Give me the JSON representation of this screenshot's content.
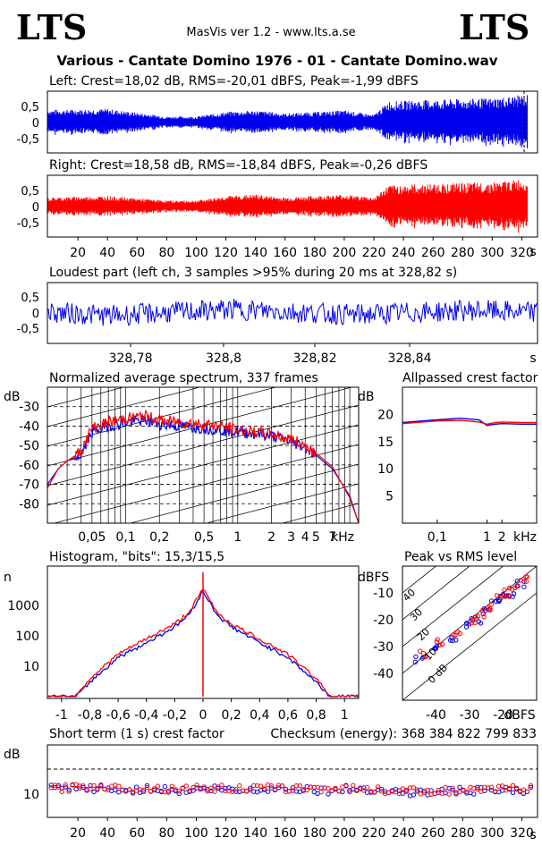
{
  "header": {
    "logo_left": "LTS",
    "logo_right": "LTS",
    "app_title": "MasVis ver 1.2 - www.lts.a.se",
    "file_title": "Various - Cantate Domino 1976 - 01 - Cantate Domino.wav"
  },
  "colors": {
    "left": "#0000ee",
    "right": "#ff0000",
    "grid": "#000000"
  },
  "panels": {
    "left": {
      "label": "Left: Crest=18,02 dB, RMS=-20,01 dBFS, Peak=-1,99 dBFS",
      "ytick_labels": [
        "0,5",
        "0",
        "-0,5"
      ]
    },
    "right": {
      "label": "Right: Crest=18,58 dB, RMS=-18,84 dBFS, Peak=-0,26 dBFS",
      "ytick_labels": [
        "0,5",
        "0",
        "-0,5"
      ]
    },
    "time_axis": {
      "tick_labels": [
        "20",
        "40",
        "60",
        "80",
        "100",
        "120",
        "140",
        "160",
        "180",
        "200",
        "220",
        "240",
        "260",
        "280",
        "300",
        "320"
      ],
      "unit": "s"
    },
    "loudest": {
      "label": "Loudest part (left  ch, 3 samples >95% during 20 ms at 328,82 s)",
      "ytick_labels": [
        "0,5",
        "0",
        "-0,5"
      ],
      "xtick_labels": [
        "328,78",
        "328,8",
        "328,82",
        "328,84"
      ],
      "unit": "s"
    },
    "spectrum": {
      "label": "Normalized average spectrum, 337 frames",
      "ylabel": "dB",
      "ytick_labels": [
        "-30",
        "-40",
        "-50",
        "-60",
        "-70",
        "-80"
      ],
      "xtick_labels": [
        "0,05",
        "0,1",
        "0,2",
        "0,5",
        "1",
        "2",
        "3",
        "4",
        "5",
        "7"
      ],
      "xunit": "kHz"
    },
    "allpass": {
      "label": "Allpassed crest factor",
      "ylabel": "dB",
      "ytick_labels": [
        "20",
        "15",
        "10",
        "5"
      ],
      "xtick_labels": [
        "0,1",
        "1",
        "2"
      ],
      "xunit": "kHz"
    },
    "histogram": {
      "label": "Histogram, \"bits\": 15,3/15,5",
      "ylabel": "n",
      "ytick_labels": [
        "1000",
        "100",
        "10"
      ],
      "xtick_labels": [
        "-1",
        "-0,8",
        "-0,6",
        "-0,4",
        "-0,2",
        "0",
        "0,2",
        "0,4",
        "0,6",
        "0,8",
        "1"
      ]
    },
    "peak_rms": {
      "label": "Peak vs RMS level",
      "ylabel": "dBFS",
      "ytick_labels": [
        "-10",
        "-20",
        "-30",
        "-40"
      ],
      "xtick_labels": [
        "-40",
        "-30",
        "-20"
      ],
      "xunit": "dBFS",
      "diag_labels": [
        "40",
        "30",
        "20",
        "10",
        "0 dB"
      ]
    },
    "crest": {
      "label": "Short term (1 s) crest factor",
      "checksum": "Checksum (energy):  368 384 822 799 833",
      "ylabel": "dB",
      "ytick_labels": [
        "10"
      ],
      "xtick_labels": [
        "20",
        "40",
        "60",
        "80",
        "100",
        "120",
        "140",
        "160",
        "180",
        "200",
        "220",
        "240",
        "260",
        "280",
        "300",
        "320"
      ],
      "unit": "s"
    }
  },
  "chart_data": [
    {
      "type": "area",
      "title": "Left: Crest=18,02 dB, RMS=-20,01 dBFS, Peak=-1,99 dBFS",
      "xlabel": "s",
      "ylim": [
        -1,
        1
      ],
      "xlim": [
        0,
        330
      ],
      "series": [
        {
          "name": "Left",
          "x": [
            0,
            40,
            80,
            100,
            120,
            140,
            160,
            180,
            200,
            220,
            230,
            260,
            300,
            328
          ],
          "values": [
            0.42,
            0.45,
            0.2,
            0.2,
            0.35,
            0.4,
            0.3,
            0.35,
            0.4,
            0.25,
            0.7,
            0.75,
            0.8,
            0.95
          ]
        }
      ]
    },
    {
      "type": "area",
      "title": "Right: Crest=18,58 dB, RMS=-18,84 dBFS, Peak=-0,26 dBFS",
      "xlabel": "s",
      "ylim": [
        -1,
        1
      ],
      "xlim": [
        0,
        330
      ],
      "series": [
        {
          "name": "Right",
          "x": [
            0,
            40,
            80,
            100,
            120,
            140,
            160,
            180,
            200,
            220,
            230,
            260,
            300,
            328
          ],
          "values": [
            0.3,
            0.35,
            0.2,
            0.2,
            0.35,
            0.4,
            0.3,
            0.35,
            0.4,
            0.3,
            0.7,
            0.75,
            0.8,
            0.95
          ]
        }
      ]
    },
    {
      "type": "line",
      "title": "Loudest part (left  ch, 3 samples >95% during 20 ms at 328,82 s)",
      "xlabel": "s",
      "xlim": [
        328.77,
        328.85
      ],
      "ylim": [
        -1,
        1
      ],
      "series": [
        {
          "name": "Left",
          "x": [
            328.77,
            328.78,
            328.8,
            328.82,
            328.84,
            328.85
          ],
          "values": [
            0.1,
            -0.3,
            0.4,
            -0.2,
            0.3,
            0.05
          ]
        }
      ]
    },
    {
      "type": "line",
      "title": "Normalized average spectrum, 337 frames",
      "xlabel": "kHz",
      "ylabel": "dB",
      "xlim": [
        0.02,
        12
      ],
      "ylim": [
        -90,
        -20
      ],
      "x": [
        0.02,
        0.025,
        0.03,
        0.04,
        0.05,
        0.07,
        0.1,
        0.15,
        0.2,
        0.3,
        0.5,
        0.7,
        1,
        2,
        3,
        4,
        5,
        7,
        10,
        12
      ],
      "series": [
        {
          "name": "Left",
          "values": [
            -70,
            -62,
            -58,
            -55,
            -43,
            -40,
            -38,
            -37,
            -39,
            -40,
            -41,
            -42,
            -43,
            -45,
            -48,
            -51,
            -55,
            -62,
            -76,
            -90
          ]
        },
        {
          "name": "Right",
          "values": [
            -72,
            -62,
            -58,
            -53,
            -41,
            -38,
            -36,
            -35,
            -37,
            -38,
            -39,
            -40,
            -42,
            -44,
            -47,
            -50,
            -54,
            -61,
            -77,
            -90
          ]
        }
      ]
    },
    {
      "type": "line",
      "title": "Allpassed crest factor",
      "xlabel": "kHz",
      "ylabel": "dB",
      "xlim": [
        0.02,
        10
      ],
      "ylim": [
        0,
        25
      ],
      "x": [
        0.02,
        0.05,
        0.1,
        0.3,
        0.7,
        1,
        1.5,
        2,
        5,
        10
      ],
      "series": [
        {
          "name": "Left",
          "values": [
            18.5,
            18.8,
            19,
            19.3,
            19,
            18,
            18.2,
            18.3,
            18.2,
            18.2
          ]
        },
        {
          "name": "Right",
          "values": [
            18.3,
            18.6,
            18.8,
            18.9,
            18.6,
            18.2,
            18.5,
            18.6,
            18.5,
            18.5
          ]
        }
      ]
    },
    {
      "type": "line",
      "title": "Histogram, \"bits\": 15,3/15,5",
      "ylabel": "n",
      "xlim": [
        -1.1,
        1.1
      ],
      "ylim": [
        1,
        20000
      ],
      "x": [
        -0.9,
        -0.8,
        -0.6,
        -0.4,
        -0.2,
        -0.1,
        0,
        0.1,
        0.2,
        0.4,
        0.6,
        0.8,
        0.9
      ],
      "series": [
        {
          "name": "Left",
          "values": [
            1,
            3,
            20,
            60,
            200,
            500,
            3000,
            500,
            200,
            60,
            20,
            3,
            1
          ]
        },
        {
          "name": "Right",
          "values": [
            1,
            4,
            25,
            80,
            250,
            600,
            3500,
            600,
            250,
            80,
            25,
            4,
            1
          ]
        }
      ]
    },
    {
      "type": "scatter",
      "title": "Peak vs RMS level",
      "xlabel": "dBFS",
      "ylabel": "dBFS",
      "xlim": [
        -50,
        -10
      ],
      "ylim": [
        -50,
        0
      ],
      "series": [
        {
          "name": "Left",
          "x": [
            -45,
            -40,
            -35,
            -30,
            -28,
            -25,
            -22,
            -20,
            -18,
            -15
          ],
          "values": [
            -35,
            -30,
            -27,
            -22,
            -20,
            -17,
            -14,
            -12,
            -10,
            -7
          ]
        },
        {
          "name": "Right",
          "x": [
            -44,
            -39,
            -34,
            -29,
            -27,
            -24,
            -21,
            -19,
            -17,
            -14
          ],
          "values": [
            -33,
            -28,
            -25,
            -20,
            -18,
            -15,
            -12,
            -10,
            -8,
            -5
          ]
        }
      ]
    },
    {
      "type": "scatter",
      "title": "Short term (1 s) crest factor",
      "xlabel": "s",
      "ylabel": "dB",
      "xlim": [
        0,
        330
      ],
      "ylim": [
        0,
        30
      ],
      "series": [
        {
          "name": "Left",
          "x": [
            10,
            30,
            50,
            70,
            90,
            110,
            130,
            150,
            170,
            190,
            210,
            230,
            250,
            270,
            290,
            310
          ],
          "values": [
            12,
            12,
            11,
            12,
            11,
            12,
            11,
            12,
            12,
            11,
            12,
            11,
            10,
            11,
            11,
            11
          ]
        },
        {
          "name": "Right",
          "x": [
            10,
            30,
            50,
            70,
            90,
            110,
            130,
            150,
            170,
            190,
            210,
            230,
            250,
            270,
            290,
            310
          ],
          "values": [
            12,
            13,
            12,
            12,
            12,
            12,
            12,
            12,
            12,
            12,
            12,
            11,
            11,
            11,
            11,
            12
          ]
        }
      ]
    }
  ]
}
